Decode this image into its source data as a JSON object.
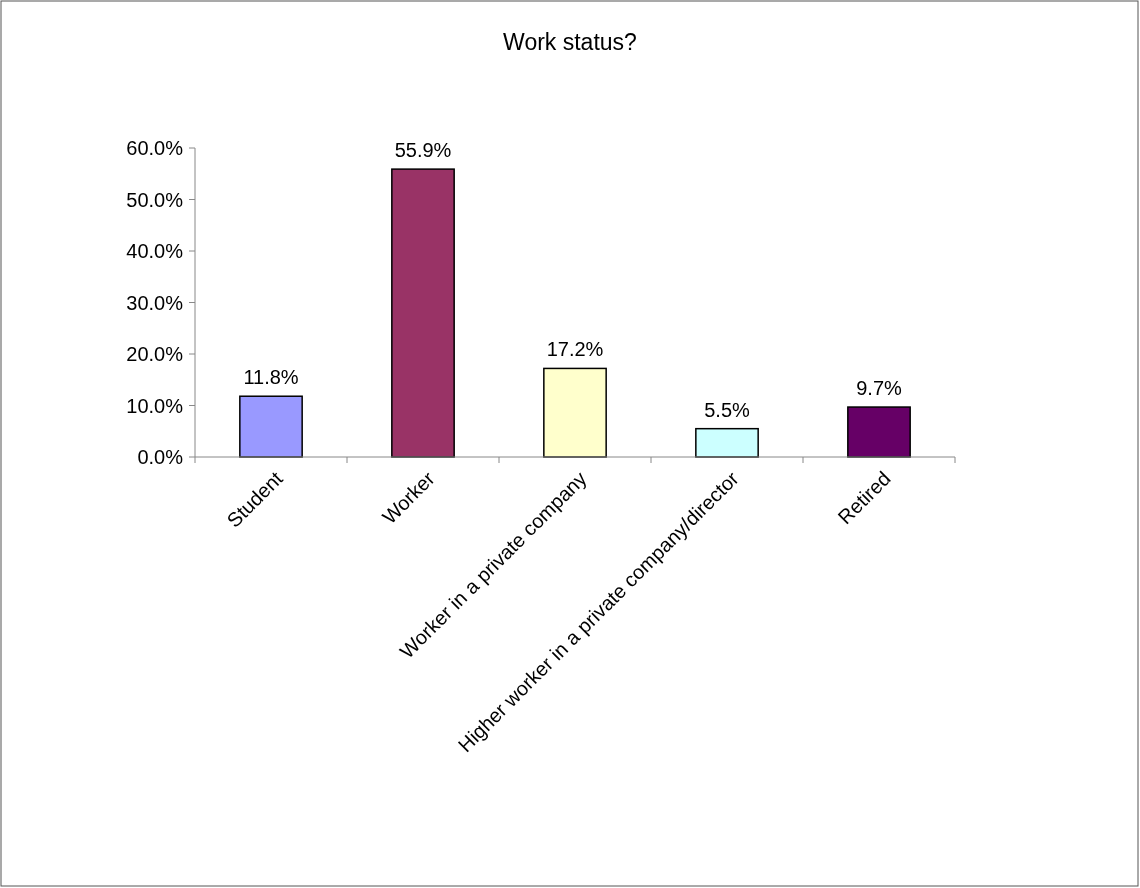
{
  "chart_data": {
    "type": "bar",
    "title": "Work status?",
    "categories": [
      "Student",
      "Worker",
      "Worker in a private company",
      "Higher worker in a private company/director",
      "Retired"
    ],
    "values": [
      11.8,
      55.9,
      17.2,
      5.5,
      9.7
    ],
    "colors": [
      "#9999ff",
      "#993366",
      "#ffffcc",
      "#ccffff",
      "#660066"
    ],
    "value_labels": [
      "11.8%",
      "55.9%",
      "17.2%",
      "5.5%",
      "9.7%"
    ],
    "ylim": [
      0,
      60
    ],
    "yticks": [
      {
        "value": 0,
        "label": "0.0%"
      },
      {
        "value": 10,
        "label": "10.0%"
      },
      {
        "value": 20,
        "label": "20.0%"
      },
      {
        "value": 30,
        "label": "30.0%"
      },
      {
        "value": 40,
        "label": "40.0%"
      },
      {
        "value": 50,
        "label": "50.0%"
      },
      {
        "value": 60,
        "label": "60.0%"
      }
    ],
    "grid": false
  }
}
